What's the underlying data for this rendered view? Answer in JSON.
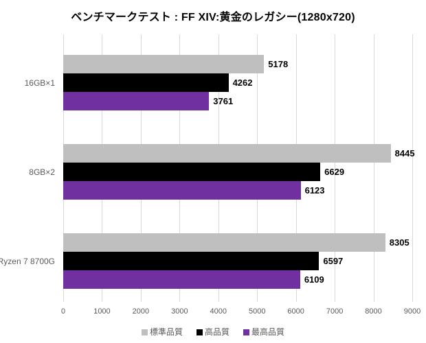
{
  "chart_data": {
    "type": "bar",
    "orientation": "horizontal",
    "title": "ベンチマークテスト : FF XIV:黄金のレガシー(1280x720)",
    "categories": [
      "16GB×1",
      "8GB×2",
      "Ryzen 7 8700G"
    ],
    "series": [
      {
        "name": "標準品質",
        "color": "#BFBFBF",
        "values": [
          5178,
          8445,
          8305
        ]
      },
      {
        "name": "高品質",
        "color": "#000000",
        "values": [
          4262,
          6629,
          6597
        ]
      },
      {
        "name": "最高品質",
        "color": "#7030A0",
        "values": [
          3761,
          6123,
          6109
        ]
      }
    ],
    "xlim": [
      0,
      9000
    ],
    "xticks": [
      0,
      1000,
      2000,
      3000,
      4000,
      5000,
      6000,
      7000,
      8000,
      9000
    ],
    "grid": true,
    "value_labels": true,
    "legend_position": "bottom",
    "colors": {
      "gridline": "#D9D9D9",
      "axis_text": "#595959",
      "value_text": "#000000",
      "title_text": "#000000",
      "background": "#FFFFFF"
    }
  }
}
